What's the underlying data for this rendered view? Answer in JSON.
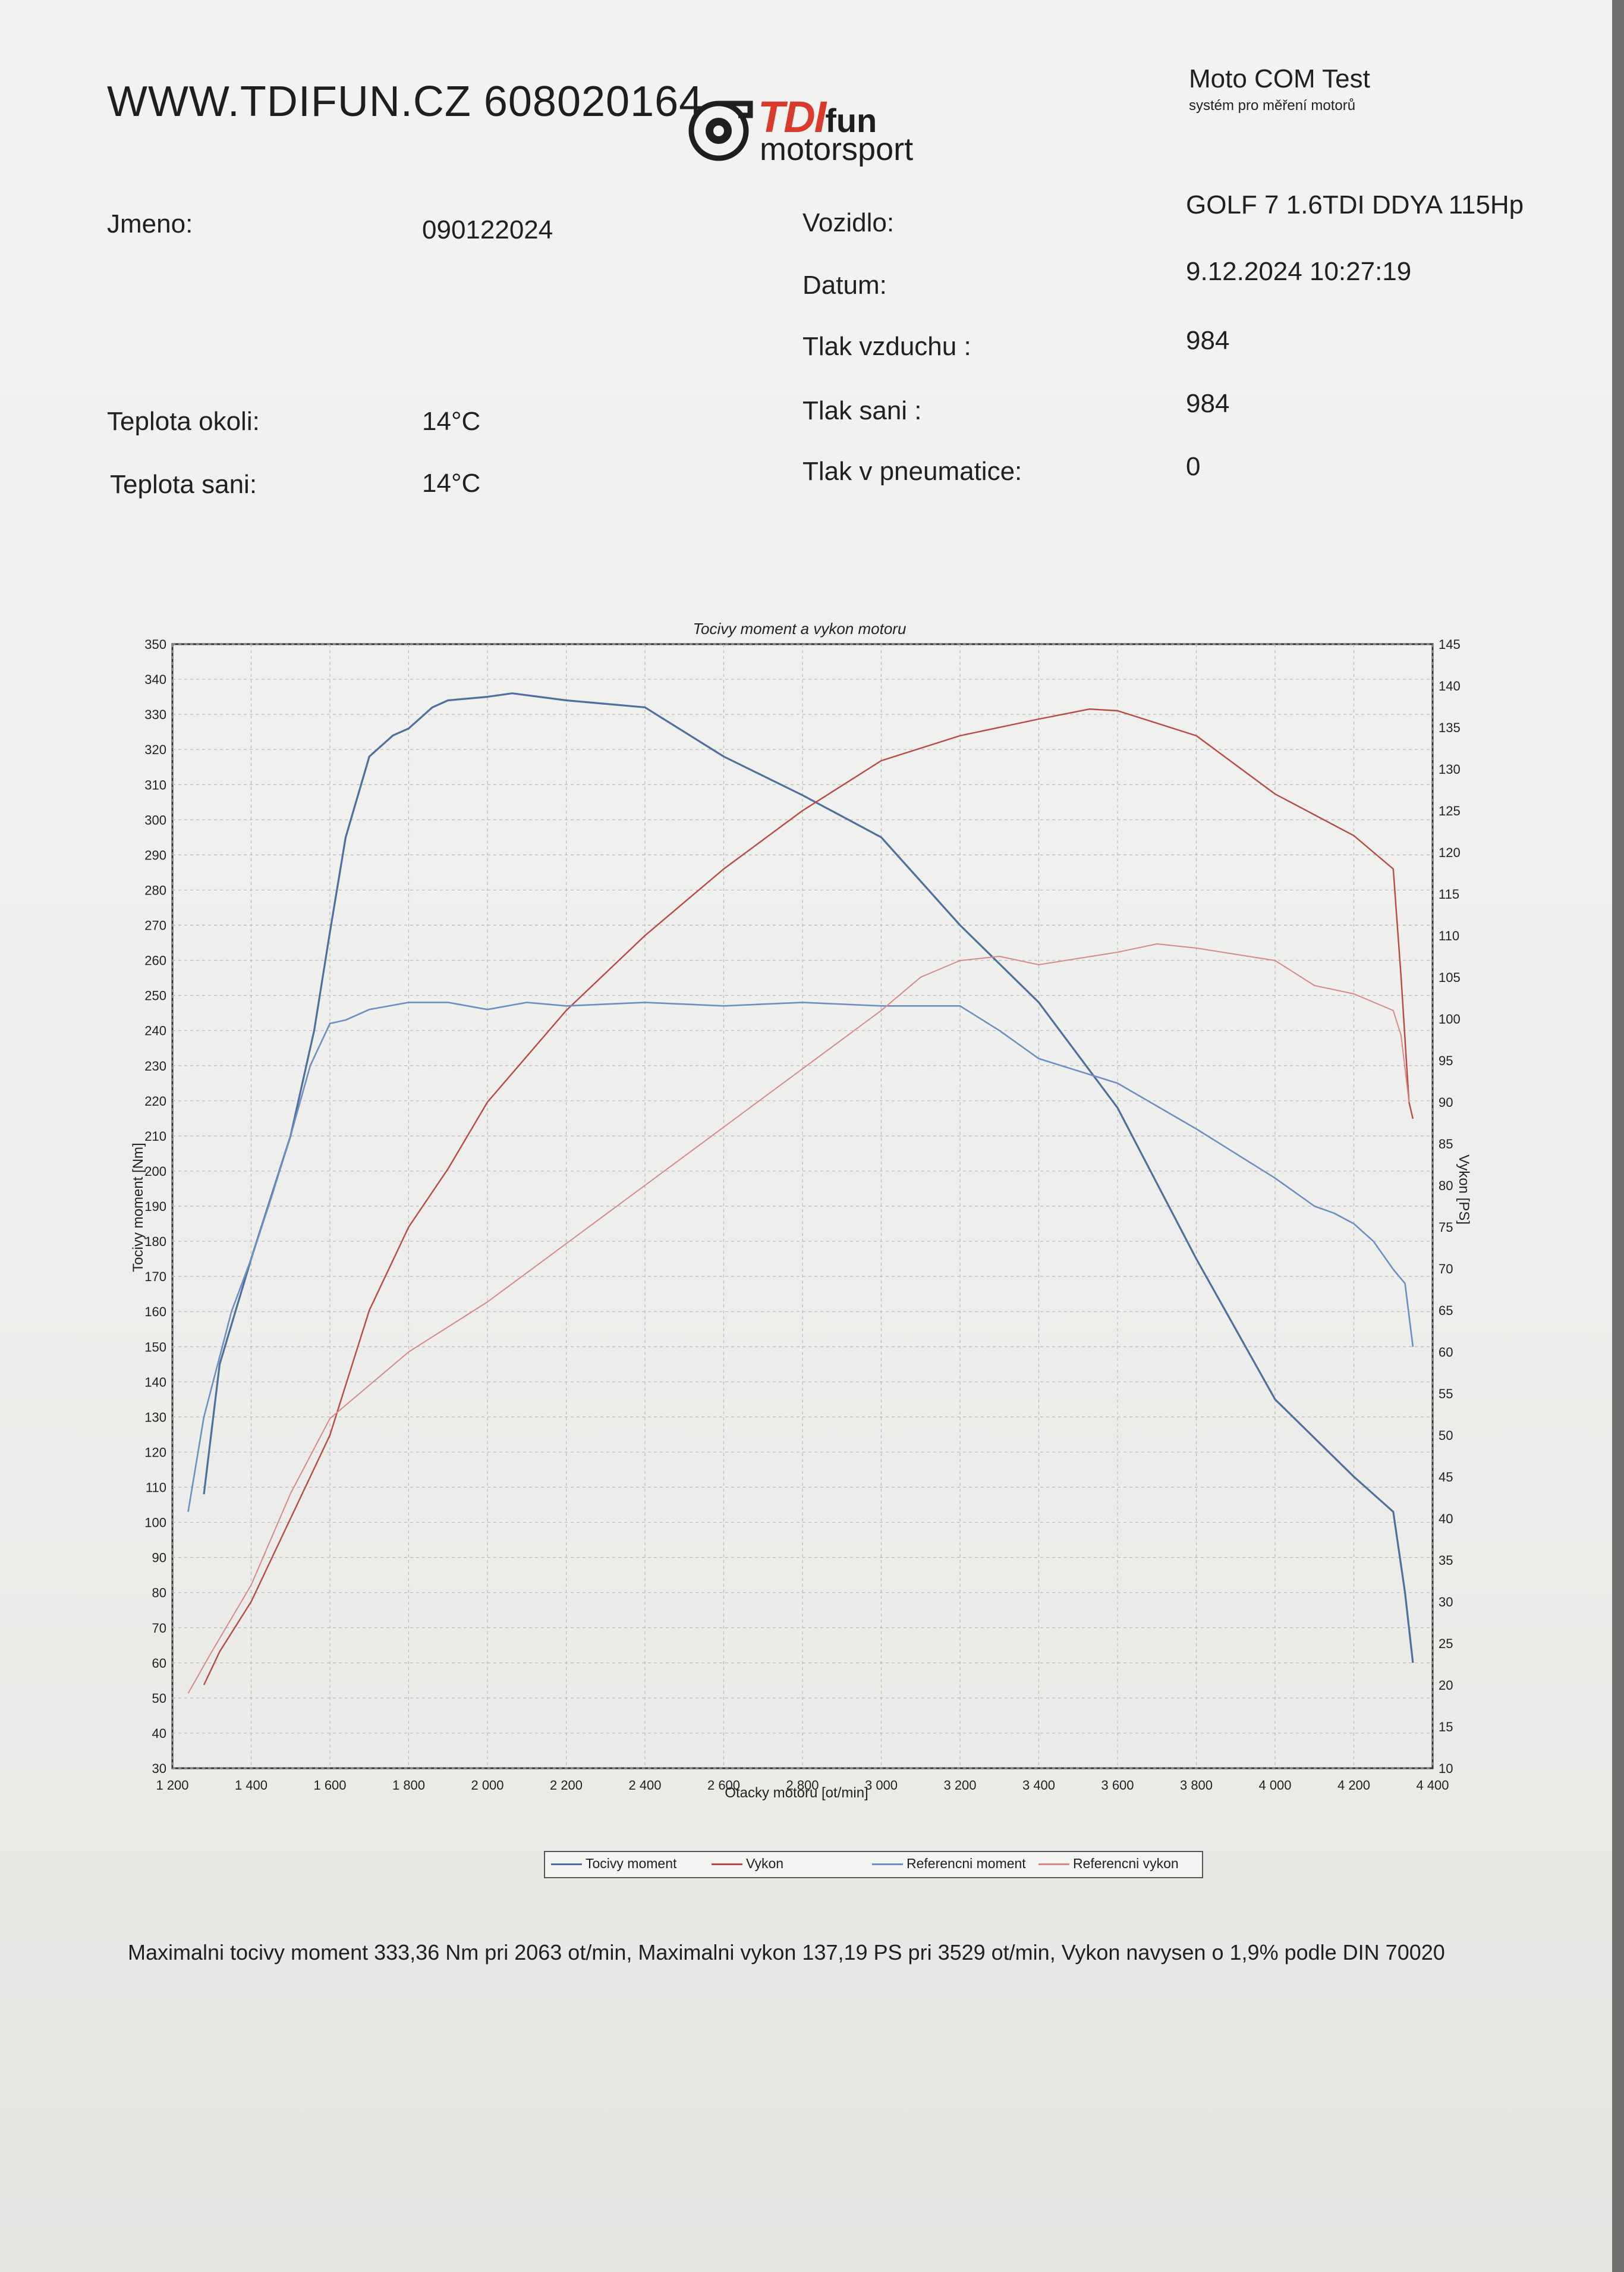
{
  "header": {
    "website": "WWW.TDIFUN.CZ 608020164",
    "logo_brand": "TDI",
    "logo_brand_suffix": "fun",
    "logo_sub": "motorsport",
    "system_name": "Moto COM Test",
    "system_sub": "systém pro měření motorů"
  },
  "fields": {
    "jmeno_label": "Jmeno:",
    "jmeno_value": "090122024",
    "vozidlo_label": "Vozidlo:",
    "vozidlo_value": "GOLF 7 1.6TDI DDYA 115Hp",
    "datum_label": "Datum:",
    "datum_value": "9.12.2024 10:27:19",
    "tlak_vzduchu_label": "Tlak vzduchu :",
    "tlak_vzduchu_value": "984",
    "teplota_okoli_label": "Teplota okoli:",
    "teplota_okoli_value": "14°C",
    "tlak_sani_label": "Tlak sani :",
    "tlak_sani_value": "984",
    "teplota_sani_label": "Teplota sani:",
    "teplota_sani_value": "14°C",
    "tlak_pneumatice_label": "Tlak v pneumatice:",
    "tlak_pneumatice_value": "0"
  },
  "chart_data": {
    "type": "line",
    "title": "Tocivy moment a vykon motoru",
    "xlabel": "Otacky motoru [ot/min]",
    "ylabel": "Tocivy moment [Nm]",
    "y2label": "Vykon [PS]",
    "xlim": [
      1200,
      4400
    ],
    "ylim": [
      30,
      350
    ],
    "y2lim": [
      10,
      145
    ],
    "x_tick_labels": [
      "1 200",
      "1 400",
      "1 600",
      "1 800",
      "2 000",
      "2 200",
      "2 400",
      "2 600",
      "2 800",
      "3 000",
      "3 200",
      "3 400",
      "3 600",
      "3 800",
      "4 000",
      "4 200",
      "4 400"
    ],
    "y_ticks": [
      30,
      40,
      50,
      60,
      70,
      80,
      90,
      100,
      110,
      120,
      130,
      140,
      150,
      160,
      170,
      180,
      190,
      200,
      210,
      220,
      230,
      240,
      250,
      260,
      270,
      280,
      290,
      300,
      310,
      320,
      330,
      340,
      350
    ],
    "y2_ticks": [
      10,
      15,
      20,
      25,
      30,
      35,
      40,
      45,
      50,
      55,
      60,
      65,
      70,
      75,
      80,
      85,
      90,
      95,
      100,
      105,
      110,
      115,
      120,
      125,
      130,
      135,
      140,
      145
    ],
    "grid": true,
    "legend_position": "bottom",
    "colors": {
      "torque": "#4f6f9c",
      "power": "#b84a45",
      "ref_torque": "#6d8fbf",
      "ref_power": "#d58a88"
    },
    "series": [
      {
        "name": "Tocivy moment",
        "axis": "left",
        "x": [
          1280,
          1320,
          1400,
          1500,
          1560,
          1600,
          1640,
          1700,
          1760,
          1800,
          1860,
          1900,
          2000,
          2063,
          2200,
          2400,
          2600,
          2800,
          3000,
          3200,
          3400,
          3600,
          3800,
          4000,
          4200,
          4300,
          4330,
          4350
        ],
        "y": [
          108,
          145,
          175,
          210,
          240,
          268,
          295,
          318,
          324,
          326,
          332,
          334,
          335,
          336,
          334,
          332,
          318,
          307,
          295,
          270,
          248,
          218,
          175,
          135,
          113,
          103,
          80,
          60
        ]
      },
      {
        "name": "Vykon",
        "axis": "right",
        "x": [
          1280,
          1320,
          1400,
          1500,
          1600,
          1700,
          1800,
          1900,
          2000,
          2200,
          2400,
          2600,
          2800,
          3000,
          3200,
          3400,
          3529,
          3600,
          3800,
          4000,
          4200,
          4300,
          4320,
          4340,
          4350
        ],
        "y": [
          20,
          24,
          30,
          40,
          50,
          65,
          75,
          82,
          90,
          101,
          110,
          118,
          125,
          131,
          134,
          136,
          137.2,
          137,
          134,
          127,
          122,
          118,
          105,
          90,
          88
        ]
      },
      {
        "name": "Referencni moment",
        "axis": "left",
        "x": [
          1240,
          1280,
          1350,
          1400,
          1450,
          1500,
          1550,
          1600,
          1640,
          1700,
          1800,
          1900,
          2000,
          2100,
          2200,
          2400,
          2600,
          2800,
          3000,
          3200,
          3300,
          3400,
          3600,
          3800,
          4000,
          4100,
          4150,
          4200,
          4250,
          4300,
          4330,
          4350
        ],
        "y": [
          103,
          130,
          160,
          175,
          192,
          210,
          230,
          242,
          243,
          246,
          248,
          248,
          246,
          248,
          247,
          248,
          247,
          248,
          247,
          247,
          240,
          232,
          225,
          212,
          198,
          190,
          188,
          185,
          180,
          172,
          168,
          150
        ]
      },
      {
        "name": "Referencni vykon",
        "axis": "right",
        "x": [
          1240,
          1300,
          1400,
          1500,
          1600,
          1700,
          1800,
          2000,
          2200,
          2400,
          2600,
          2800,
          3000,
          3100,
          3200,
          3300,
          3400,
          3600,
          3700,
          3800,
          4000,
          4100,
          4200,
          4300,
          4320,
          4340
        ],
        "y": [
          19,
          24,
          32,
          43,
          52,
          56,
          60,
          66,
          73,
          80,
          87,
          94,
          101,
          105,
          107,
          107.5,
          106.5,
          108,
          109,
          108.5,
          107,
          104,
          103,
          101,
          98,
          90
        ]
      }
    ]
  },
  "summary": "Maximalni tocivy moment 333,36 Nm pri 2063 ot/min,  Maximalni vykon 137,19 PS pri 3529 ot/min,  Vykon navysen o 1,9% podle DIN 70020"
}
